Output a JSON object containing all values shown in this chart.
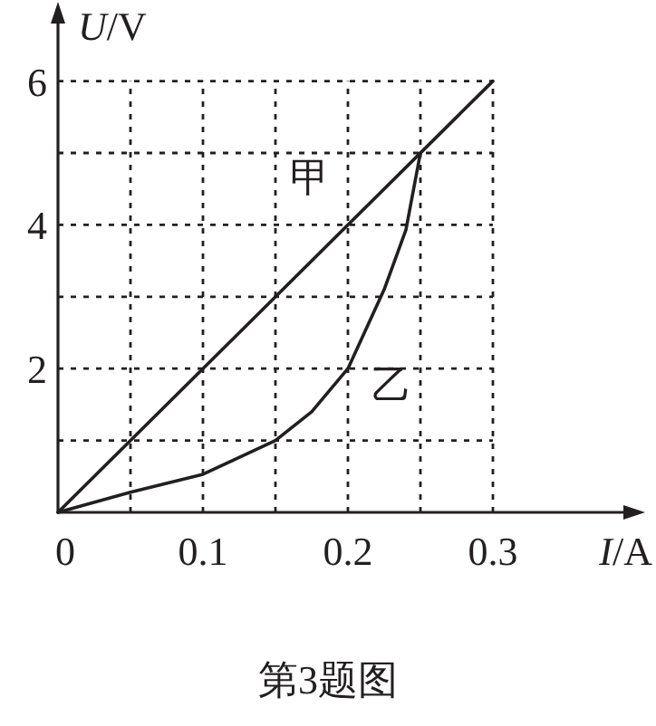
{
  "chart_data": {
    "type": "line",
    "xlabel": "*I*/A",
    "ylabel": "*U*/V",
    "xlim": [
      0,
      0.39
    ],
    "ylim": [
      0,
      6.8
    ],
    "xticks": [
      0,
      {
        "value": 0.05,
        "label": null
      },
      0.1,
      {
        "value": 0.15,
        "label": null
      },
      0.2,
      {
        "value": 0.25,
        "label": null
      },
      0.3
    ],
    "yticks": [
      {
        "value": 0,
        "label": null
      },
      {
        "value": 1,
        "label": null
      },
      2,
      {
        "value": 3,
        "label": null
      },
      4,
      {
        "value": 5,
        "label": null
      },
      6
    ],
    "grid": true,
    "marker": "none",
    "line_style": "solid",
    "series": [
      {
        "name": "甲",
        "color": "#231f20",
        "x": [
          0,
          0.3
        ],
        "values": [
          0,
          6
        ]
      },
      {
        "name": "乙",
        "color": "#231f20",
        "x": [
          0,
          0.05,
          0.1,
          0.15,
          0.175,
          0.2,
          0.225,
          0.24,
          0.25
        ],
        "values": [
          0,
          0.28,
          0.53,
          1,
          1.4,
          2,
          3.1,
          3.93,
          5
        ]
      }
    ],
    "annotations": [
      "第3题图"
    ]
  }
}
